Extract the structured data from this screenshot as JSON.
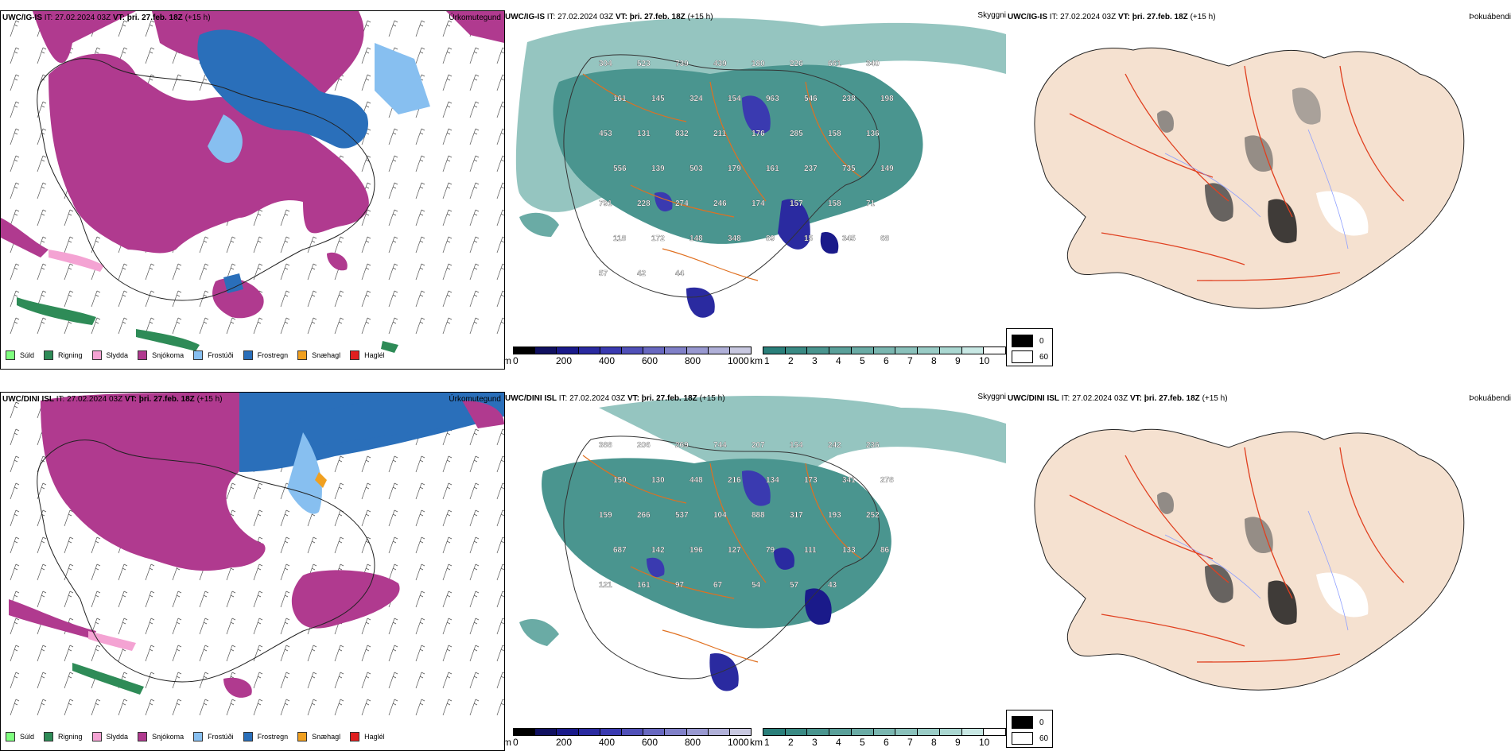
{
  "rows": [
    {
      "model": "UWC/IG-IS",
      "it_label": "IT: 27.02.2024 03Z",
      "vt_label": "VT:",
      "vt_value": "þri. 27.feb. 18Z",
      "lead": "(+15 h)",
      "ceiling_labels": [
        "304",
        "523",
        "739",
        "439",
        "180",
        "226",
        "661",
        "340",
        "161",
        "145",
        "324",
        "154",
        "963",
        "546",
        "238",
        "198",
        "453",
        "131",
        "832",
        "211",
        "176",
        "285",
        "158",
        "136",
        "556",
        "139",
        "503",
        "179",
        "161",
        "237",
        "735",
        "149",
        "791",
        "228",
        "274",
        "246",
        "174",
        "157",
        "158",
        "71",
        "118",
        "172",
        "148",
        "348",
        "89",
        "15",
        "345",
        "68",
        "57",
        "42",
        "44"
      ]
    },
    {
      "model": "UWC/DINI ISL",
      "it_label": "IT: 27.02.2024 03Z",
      "vt_label": "VT:",
      "vt_value": "þri. 27.feb. 18Z",
      "lead": "(+15 h)",
      "ceiling_labels": [
        "388",
        "206",
        "269",
        "744",
        "207",
        "154",
        "242",
        "236",
        "150",
        "130",
        "448",
        "216",
        "134",
        "173",
        "341",
        "278",
        "159",
        "266",
        "537",
        "104",
        "888",
        "317",
        "193",
        "252",
        "687",
        "142",
        "196",
        "127",
        "79",
        "111",
        "133",
        "86",
        "121",
        "161",
        "97",
        "67",
        "54",
        "57",
        "43"
      ]
    }
  ],
  "panel_names": {
    "precip": "Úrkomutegund",
    "cloud": "Skyggni",
    "fog": "Þokuábendi"
  },
  "precip_legend": [
    {
      "label": "Súld",
      "color": "#7fff7f"
    },
    {
      "label": "Rigning",
      "color": "#2e8b57"
    },
    {
      "label": "Slydda",
      "color": "#f4a3d3"
    },
    {
      "label": "Snjókoma",
      "color": "#b03a8f"
    },
    {
      "label": "Frostúði",
      "color": "#87bff0"
    },
    {
      "label": "Frostregn",
      "color": "#2a6fba"
    },
    {
      "label": "Snæhagl",
      "color": "#f0a020"
    },
    {
      "label": "Haglél",
      "color": "#e02020"
    }
  ],
  "ceiling_bar": {
    "unit": "m",
    "ticks": [
      "0",
      "200",
      "400",
      "600",
      "800",
      "1000"
    ],
    "colors": [
      "#000000",
      "#101060",
      "#1a1a8a",
      "#2a2aa0",
      "#3a3ab0",
      "#5050b8",
      "#6868c0",
      "#8080c8",
      "#9898d0",
      "#b0b0d8",
      "#c8c8e0"
    ]
  },
  "vis_bar": {
    "unit": "km",
    "ticks": [
      "1",
      "2",
      "3",
      "4",
      "5",
      "6",
      "7",
      "8",
      "9",
      "10"
    ],
    "colors": [
      "#2a7f7a",
      "#3a8a84",
      "#4a958f",
      "#5aa09a",
      "#6aaba5",
      "#7ab6b0",
      "#8ac1bb",
      "#9accc6",
      "#aad7d1",
      "#c8e8e4",
      "#ffffff"
    ]
  },
  "fog_legend": [
    {
      "label": "0",
      "color": "#000000"
    },
    {
      "label": "60",
      "color": "#ffffff"
    }
  ]
}
